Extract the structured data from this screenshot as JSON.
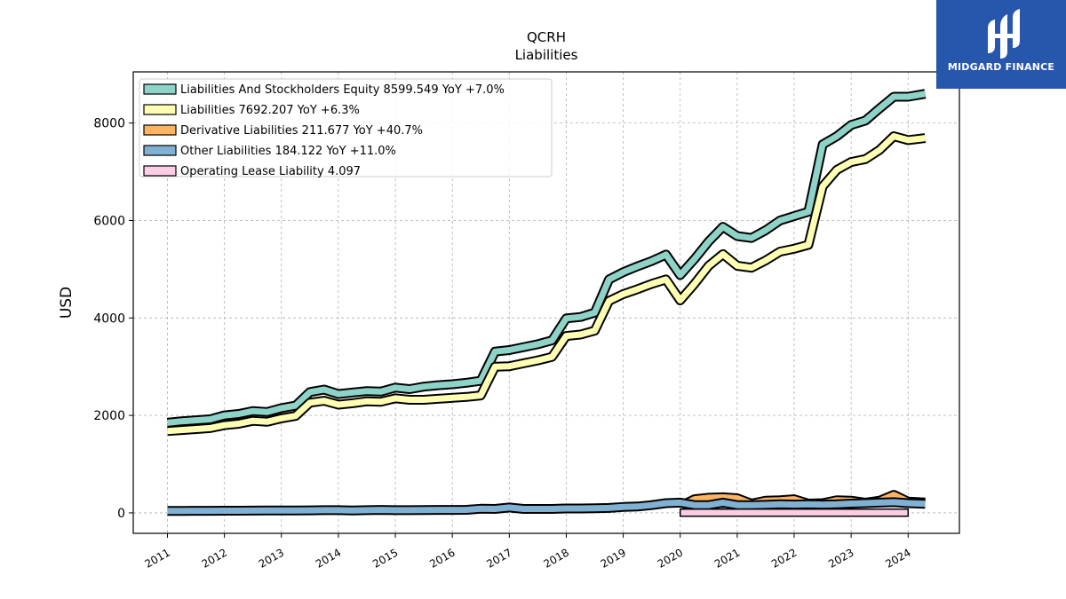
{
  "chart_data": {
    "type": "area",
    "title": "QCRH",
    "subtitle": "Liabilities",
    "ylabel": "USD",
    "xlabel": "",
    "ylim": [
      -420,
      9050
    ],
    "xlim": [
      2010.4,
      2024.9
    ],
    "yticks": [
      0,
      2000,
      4000,
      6000,
      8000
    ],
    "xticks": [
      "2011",
      "2012",
      "2013",
      "2014",
      "2015",
      "2016",
      "2017",
      "2018",
      "2019",
      "2020",
      "2021",
      "2022",
      "2023",
      "2024"
    ],
    "grid": true,
    "legend_position": "top-left",
    "series": [
      {
        "name": "Liabilities And Stockholders Equity",
        "legend": "Liabilities And Stockholders Equity  8599.549 YoY +7.0%",
        "color": "#8dd3c7",
        "x": [
          2011.0,
          2011.25,
          2011.5,
          2011.75,
          2012.0,
          2012.25,
          2012.5,
          2012.75,
          2013.0,
          2013.25,
          2013.5,
          2013.75,
          2014.0,
          2014.25,
          2014.5,
          2014.75,
          2015.0,
          2015.25,
          2015.5,
          2015.75,
          2016.0,
          2016.25,
          2016.5,
          2016.75,
          2017.0,
          2017.25,
          2017.5,
          2017.75,
          2018.0,
          2018.25,
          2018.5,
          2018.75,
          2019.0,
          2019.25,
          2019.5,
          2019.75,
          2020.0,
          2020.25,
          2020.5,
          2020.75,
          2021.0,
          2021.25,
          2021.5,
          2021.75,
          2022.0,
          2022.25,
          2022.5,
          2022.75,
          2023.0,
          2023.25,
          2023.5,
          2023.75,
          2024.0,
          2024.3
        ],
        "values": [
          1850,
          1880,
          1900,
          1920,
          2000,
          2030,
          2090,
          2070,
          2150,
          2200,
          2480,
          2530,
          2440,
          2470,
          2500,
          2490,
          2570,
          2540,
          2590,
          2620,
          2640,
          2670,
          2710,
          3310,
          3340,
          3400,
          3460,
          3540,
          3990,
          4020,
          4110,
          4790,
          4940,
          5060,
          5170,
          5300,
          4880,
          5210,
          5570,
          5870,
          5680,
          5640,
          5800,
          6000,
          6090,
          6180,
          7560,
          7730,
          7960,
          8050,
          8300,
          8540,
          8540,
          8600
        ]
      },
      {
        "name": "Liabilities",
        "legend": "Liabilities  7692.207 YoY +6.3%",
        "color": "#ffffb3",
        "x": [
          2011.0,
          2011.25,
          2011.5,
          2011.75,
          2012.0,
          2012.25,
          2012.5,
          2012.75,
          2013.0,
          2013.25,
          2013.5,
          2013.75,
          2014.0,
          2014.25,
          2014.5,
          2014.75,
          2015.0,
          2015.25,
          2015.5,
          2015.75,
          2016.0,
          2016.25,
          2016.5,
          2016.75,
          2017.0,
          2017.25,
          2017.5,
          2017.75,
          2018.0,
          2018.25,
          2018.5,
          2018.75,
          2019.0,
          2019.25,
          2019.5,
          2019.75,
          2020.0,
          2020.25,
          2020.5,
          2020.75,
          2021.0,
          2021.25,
          2021.5,
          2021.75,
          2022.0,
          2022.25,
          2022.5,
          2022.75,
          2023.0,
          2023.25,
          2023.5,
          2023.75,
          2024.0,
          2024.3
        ],
        "values": [
          1680,
          1700,
          1720,
          1740,
          1800,
          1830,
          1890,
          1870,
          1940,
          1990,
          2260,
          2300,
          2220,
          2250,
          2290,
          2280,
          2350,
          2320,
          2320,
          2340,
          2360,
          2380,
          2410,
          3000,
          3010,
          3070,
          3130,
          3200,
          3630,
          3660,
          3740,
          4350,
          4490,
          4590,
          4700,
          4790,
          4360,
          4700,
          5070,
          5310,
          5070,
          5030,
          5180,
          5360,
          5420,
          5500,
          6700,
          7040,
          7200,
          7260,
          7450,
          7730,
          7650,
          7692
        ]
      },
      {
        "name": "Derivative Liabilities",
        "legend": "Derivative Liabilities  211.677 YoY +40.7%",
        "color": "#fdb462",
        "x": [
          2020.0,
          2020.25,
          2020.5,
          2020.75,
          2021.0,
          2021.25,
          2021.5,
          2021.75,
          2022.0,
          2022.25,
          2022.5,
          2022.75,
          2023.0,
          2023.25,
          2023.5,
          2023.75,
          2024.0,
          2024.3
        ],
        "values": [
          140,
          280,
          310,
          320,
          300,
          190,
          250,
          260,
          280,
          190,
          200,
          260,
          250,
          210,
          250,
          370,
          230,
          212
        ]
      },
      {
        "name": "Other Liabilities",
        "legend": "Other Liabilities  184.122 YoY +11.0%",
        "color": "#80b1d3",
        "x": [
          2011.0,
          2011.25,
          2011.5,
          2011.75,
          2012.0,
          2012.25,
          2012.5,
          2012.75,
          2013.0,
          2013.25,
          2013.5,
          2013.75,
          2014.0,
          2014.25,
          2014.5,
          2014.75,
          2015.0,
          2015.25,
          2015.5,
          2015.75,
          2016.0,
          2016.25,
          2016.5,
          2016.75,
          2017.0,
          2017.25,
          2017.5,
          2017.75,
          2018.0,
          2018.25,
          2018.5,
          2018.75,
          2019.0,
          2019.25,
          2019.5,
          2019.75,
          2020.0,
          2020.25,
          2020.5,
          2020.75,
          2021.0,
          2021.25,
          2021.5,
          2021.75,
          2022.0,
          2022.25,
          2022.5,
          2022.75,
          2023.0,
          2023.25,
          2023.5,
          2023.75,
          2024.0,
          2024.3
        ],
        "values": [
          40,
          40,
          42,
          42,
          45,
          45,
          46,
          48,
          50,
          48,
          52,
          55,
          55,
          50,
          55,
          60,
          55,
          55,
          58,
          60,
          60,
          62,
          85,
          80,
          110,
          80,
          80,
          80,
          90,
          90,
          95,
          100,
          120,
          130,
          160,
          200,
          210,
          160,
          160,
          210,
          160,
          160,
          165,
          175,
          170,
          175,
          170,
          175,
          190,
          200,
          210,
          220,
          200,
          184
        ]
      },
      {
        "name": "Operating Lease Liability",
        "legend": "Operating Lease Liability  4.097",
        "color": "#fccde5",
        "x": [
          2020.0,
          2020.25,
          2020.5,
          2020.75,
          2021.0,
          2021.25,
          2021.5,
          2021.75,
          2022.0,
          2022.25,
          2022.5,
          2022.75,
          2023.0,
          2023.25,
          2023.5,
          2023.75,
          2024.0
        ],
        "values": [
          4.1,
          4.1,
          4.1,
          4.1,
          4.1,
          4.1,
          4.1,
          4.1,
          4.1,
          4.1,
          4.1,
          4.1,
          4.1,
          4.1,
          4.1,
          4.1,
          4.1
        ]
      }
    ]
  },
  "brand": {
    "name": "MIDGARD FINANCE",
    "color": "#2756ad"
  }
}
